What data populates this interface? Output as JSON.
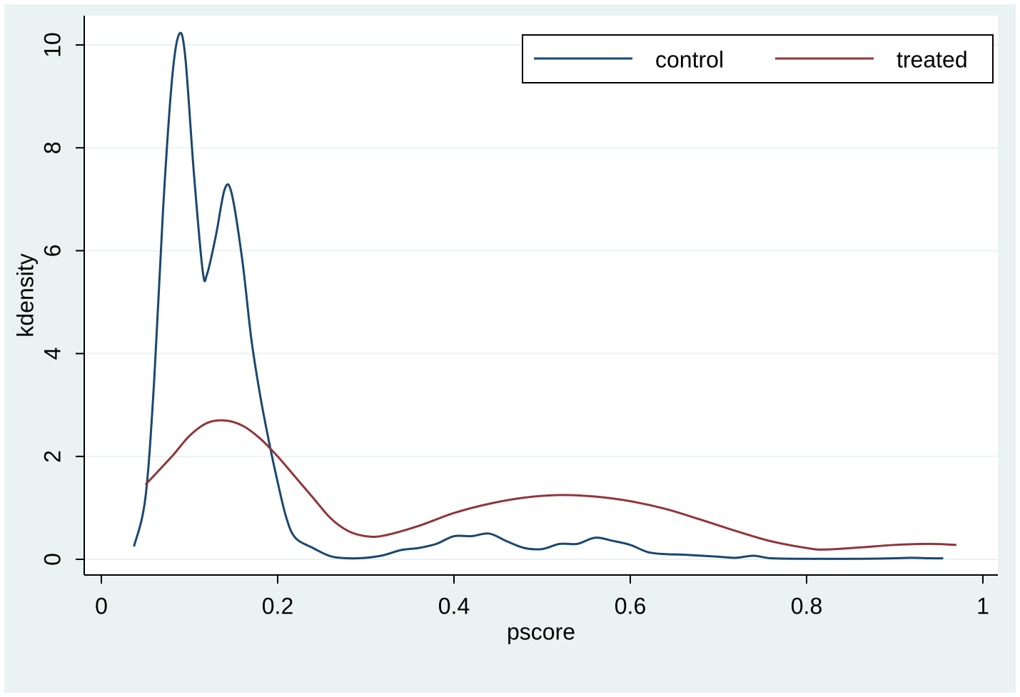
{
  "chart_data": {
    "type": "line",
    "xlabel": "pscore",
    "ylabel": "kdensity",
    "xlim": [
      0,
      1
    ],
    "ylim": [
      0,
      10
    ],
    "xticks": [
      0,
      0.2,
      0.4,
      0.6,
      0.8,
      1
    ],
    "yticks": [
      0,
      2,
      4,
      6,
      8,
      10
    ],
    "grid": true,
    "legend": "top-right",
    "series": [
      {
        "name": "control",
        "color": "#1a476f",
        "x": [
          0.037,
          0.05,
          0.06,
          0.07,
          0.08,
          0.088,
          0.095,
          0.105,
          0.115,
          0.12,
          0.13,
          0.14,
          0.148,
          0.16,
          0.17,
          0.18,
          0.19,
          0.2,
          0.21,
          0.22,
          0.24,
          0.26,
          0.28,
          0.3,
          0.32,
          0.34,
          0.36,
          0.38,
          0.4,
          0.42,
          0.44,
          0.46,
          0.48,
          0.5,
          0.52,
          0.54,
          0.56,
          0.58,
          0.6,
          0.62,
          0.64,
          0.66,
          0.7,
          0.72,
          0.74,
          0.76,
          0.8,
          0.86,
          0.9,
          0.92,
          0.94,
          0.955
        ],
        "values": [
          0.25,
          1.2,
          3.5,
          6.8,
          9.3,
          10.2,
          9.8,
          7.5,
          5.6,
          5.55,
          6.3,
          7.2,
          7.1,
          5.8,
          4.3,
          3.2,
          2.3,
          1.5,
          0.8,
          0.42,
          0.22,
          0.06,
          0.02,
          0.03,
          0.08,
          0.18,
          0.22,
          0.3,
          0.45,
          0.45,
          0.5,
          0.35,
          0.22,
          0.2,
          0.3,
          0.3,
          0.42,
          0.36,
          0.28,
          0.14,
          0.1,
          0.09,
          0.05,
          0.03,
          0.07,
          0.02,
          0.01,
          0.01,
          0.02,
          0.03,
          0.02,
          0.02
        ]
      },
      {
        "name": "treated",
        "color": "#90353b",
        "x": [
          0.05,
          0.08,
          0.1,
          0.12,
          0.14,
          0.16,
          0.18,
          0.2,
          0.22,
          0.24,
          0.26,
          0.28,
          0.3,
          0.32,
          0.36,
          0.4,
          0.44,
          0.48,
          0.52,
          0.56,
          0.6,
          0.64,
          0.68,
          0.72,
          0.76,
          0.8,
          0.82,
          0.86,
          0.9,
          0.94,
          0.97
        ],
        "values": [
          1.45,
          2.0,
          2.4,
          2.65,
          2.7,
          2.6,
          2.35,
          2.0,
          1.6,
          1.2,
          0.8,
          0.55,
          0.45,
          0.46,
          0.65,
          0.9,
          1.08,
          1.2,
          1.25,
          1.22,
          1.13,
          0.98,
          0.77,
          0.55,
          0.35,
          0.22,
          0.19,
          0.23,
          0.28,
          0.3,
          0.28
        ]
      }
    ]
  }
}
